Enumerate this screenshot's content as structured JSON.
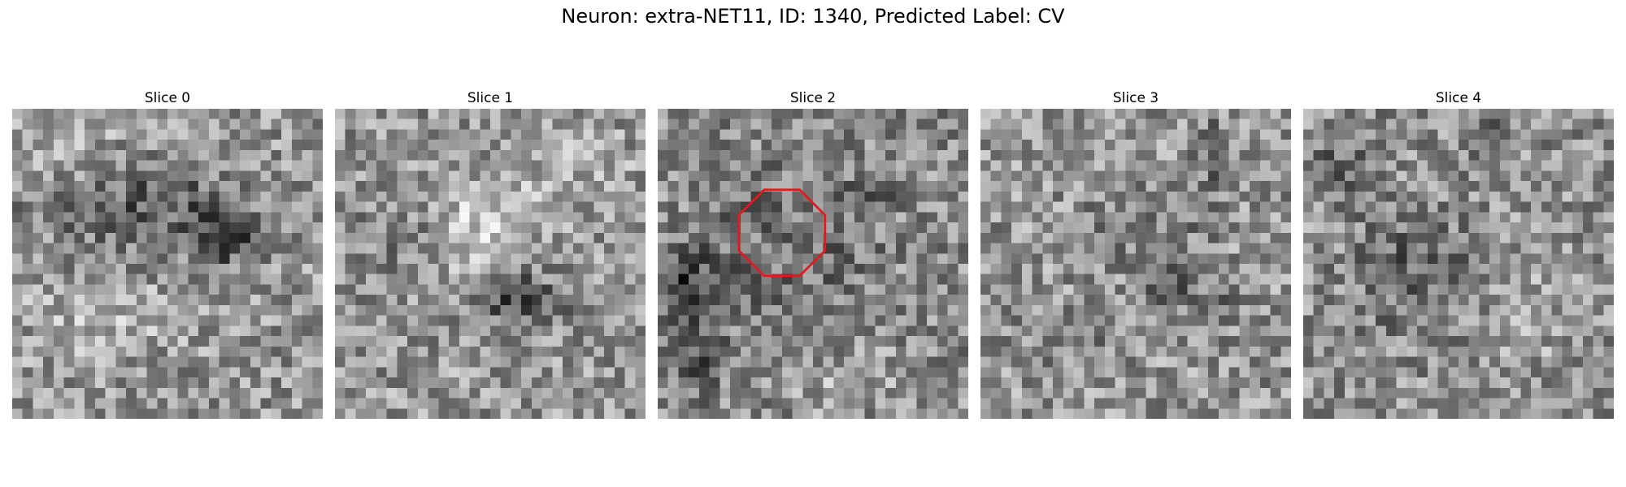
{
  "figure": {
    "title": "Neuron: extra-NET11, ID: 1340, Predicted Label: CV"
  },
  "slices": [
    {
      "label": "Slice 0",
      "has_roi": false
    },
    {
      "label": "Slice 1",
      "has_roi": false
    },
    {
      "label": "Slice 2",
      "has_roi": true
    },
    {
      "label": "Slice 3",
      "has_roi": false
    },
    {
      "label": "Slice 4",
      "has_roi": false
    }
  ],
  "colors": {
    "roi_outline": "#e31a1c",
    "colormap": "gray"
  }
}
